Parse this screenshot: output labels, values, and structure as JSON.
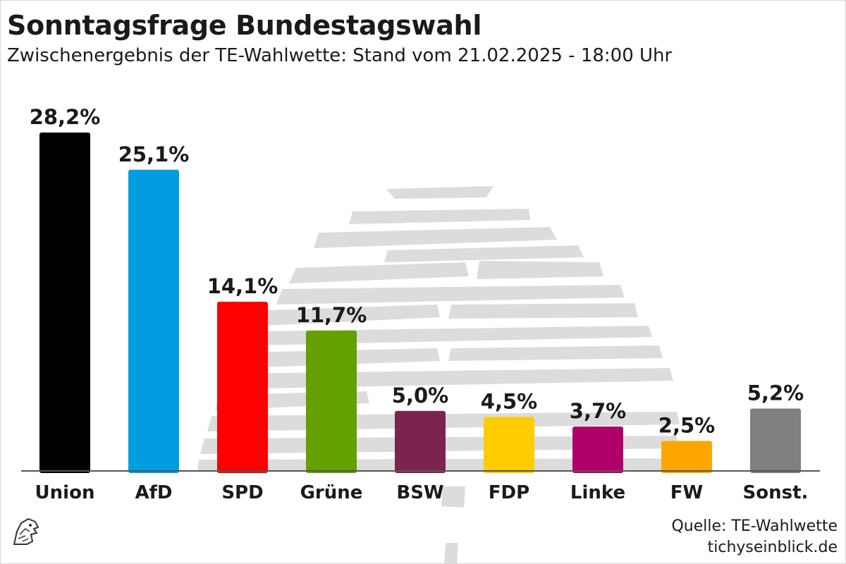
{
  "header": {
    "title": "Sonntagsfrage Bundestagswahl",
    "subtitle": "Zwischenergebnis der TE-Wahlwette: Stand vom 21.02.2025 - 18:00 Uhr"
  },
  "chart_data": {
    "type": "bar",
    "title": "Sonntagsfrage Bundestagswahl",
    "subtitle": "Zwischenergebnis der TE-Wahlwette: Stand vom 21.02.2025 - 18:00 Uhr",
    "categories": [
      "Union",
      "AfD",
      "SPD",
      "Grüne",
      "BSW",
      "FDP",
      "Linke",
      "FW",
      "Sonst."
    ],
    "values": [
      28.2,
      25.1,
      14.1,
      11.7,
      5.0,
      4.5,
      3.7,
      2.5,
      5.2
    ],
    "value_labels": [
      "28,2%",
      "25,1%",
      "14,1%",
      "11,7%",
      "5,0%",
      "4,5%",
      "3,7%",
      "2,5%",
      "5,2%"
    ],
    "colors": [
      "#000000",
      "#009ee0",
      "#ff0000",
      "#64a000",
      "#7b2450",
      "#ffcc00",
      "#b0006a",
      "#ffa500",
      "#808080"
    ],
    "ylim": [
      0,
      28.2
    ],
    "xlabel": "",
    "ylabel": "",
    "grid": false,
    "legend": "none"
  },
  "footer": {
    "source": "Quelle: TE-Wahlwette",
    "site": "tichyseinblick.de"
  },
  "decor": {
    "logo_icon": "eagle-head-logo-icon",
    "background_icon": "reichstag-dome-watermark-icon"
  }
}
